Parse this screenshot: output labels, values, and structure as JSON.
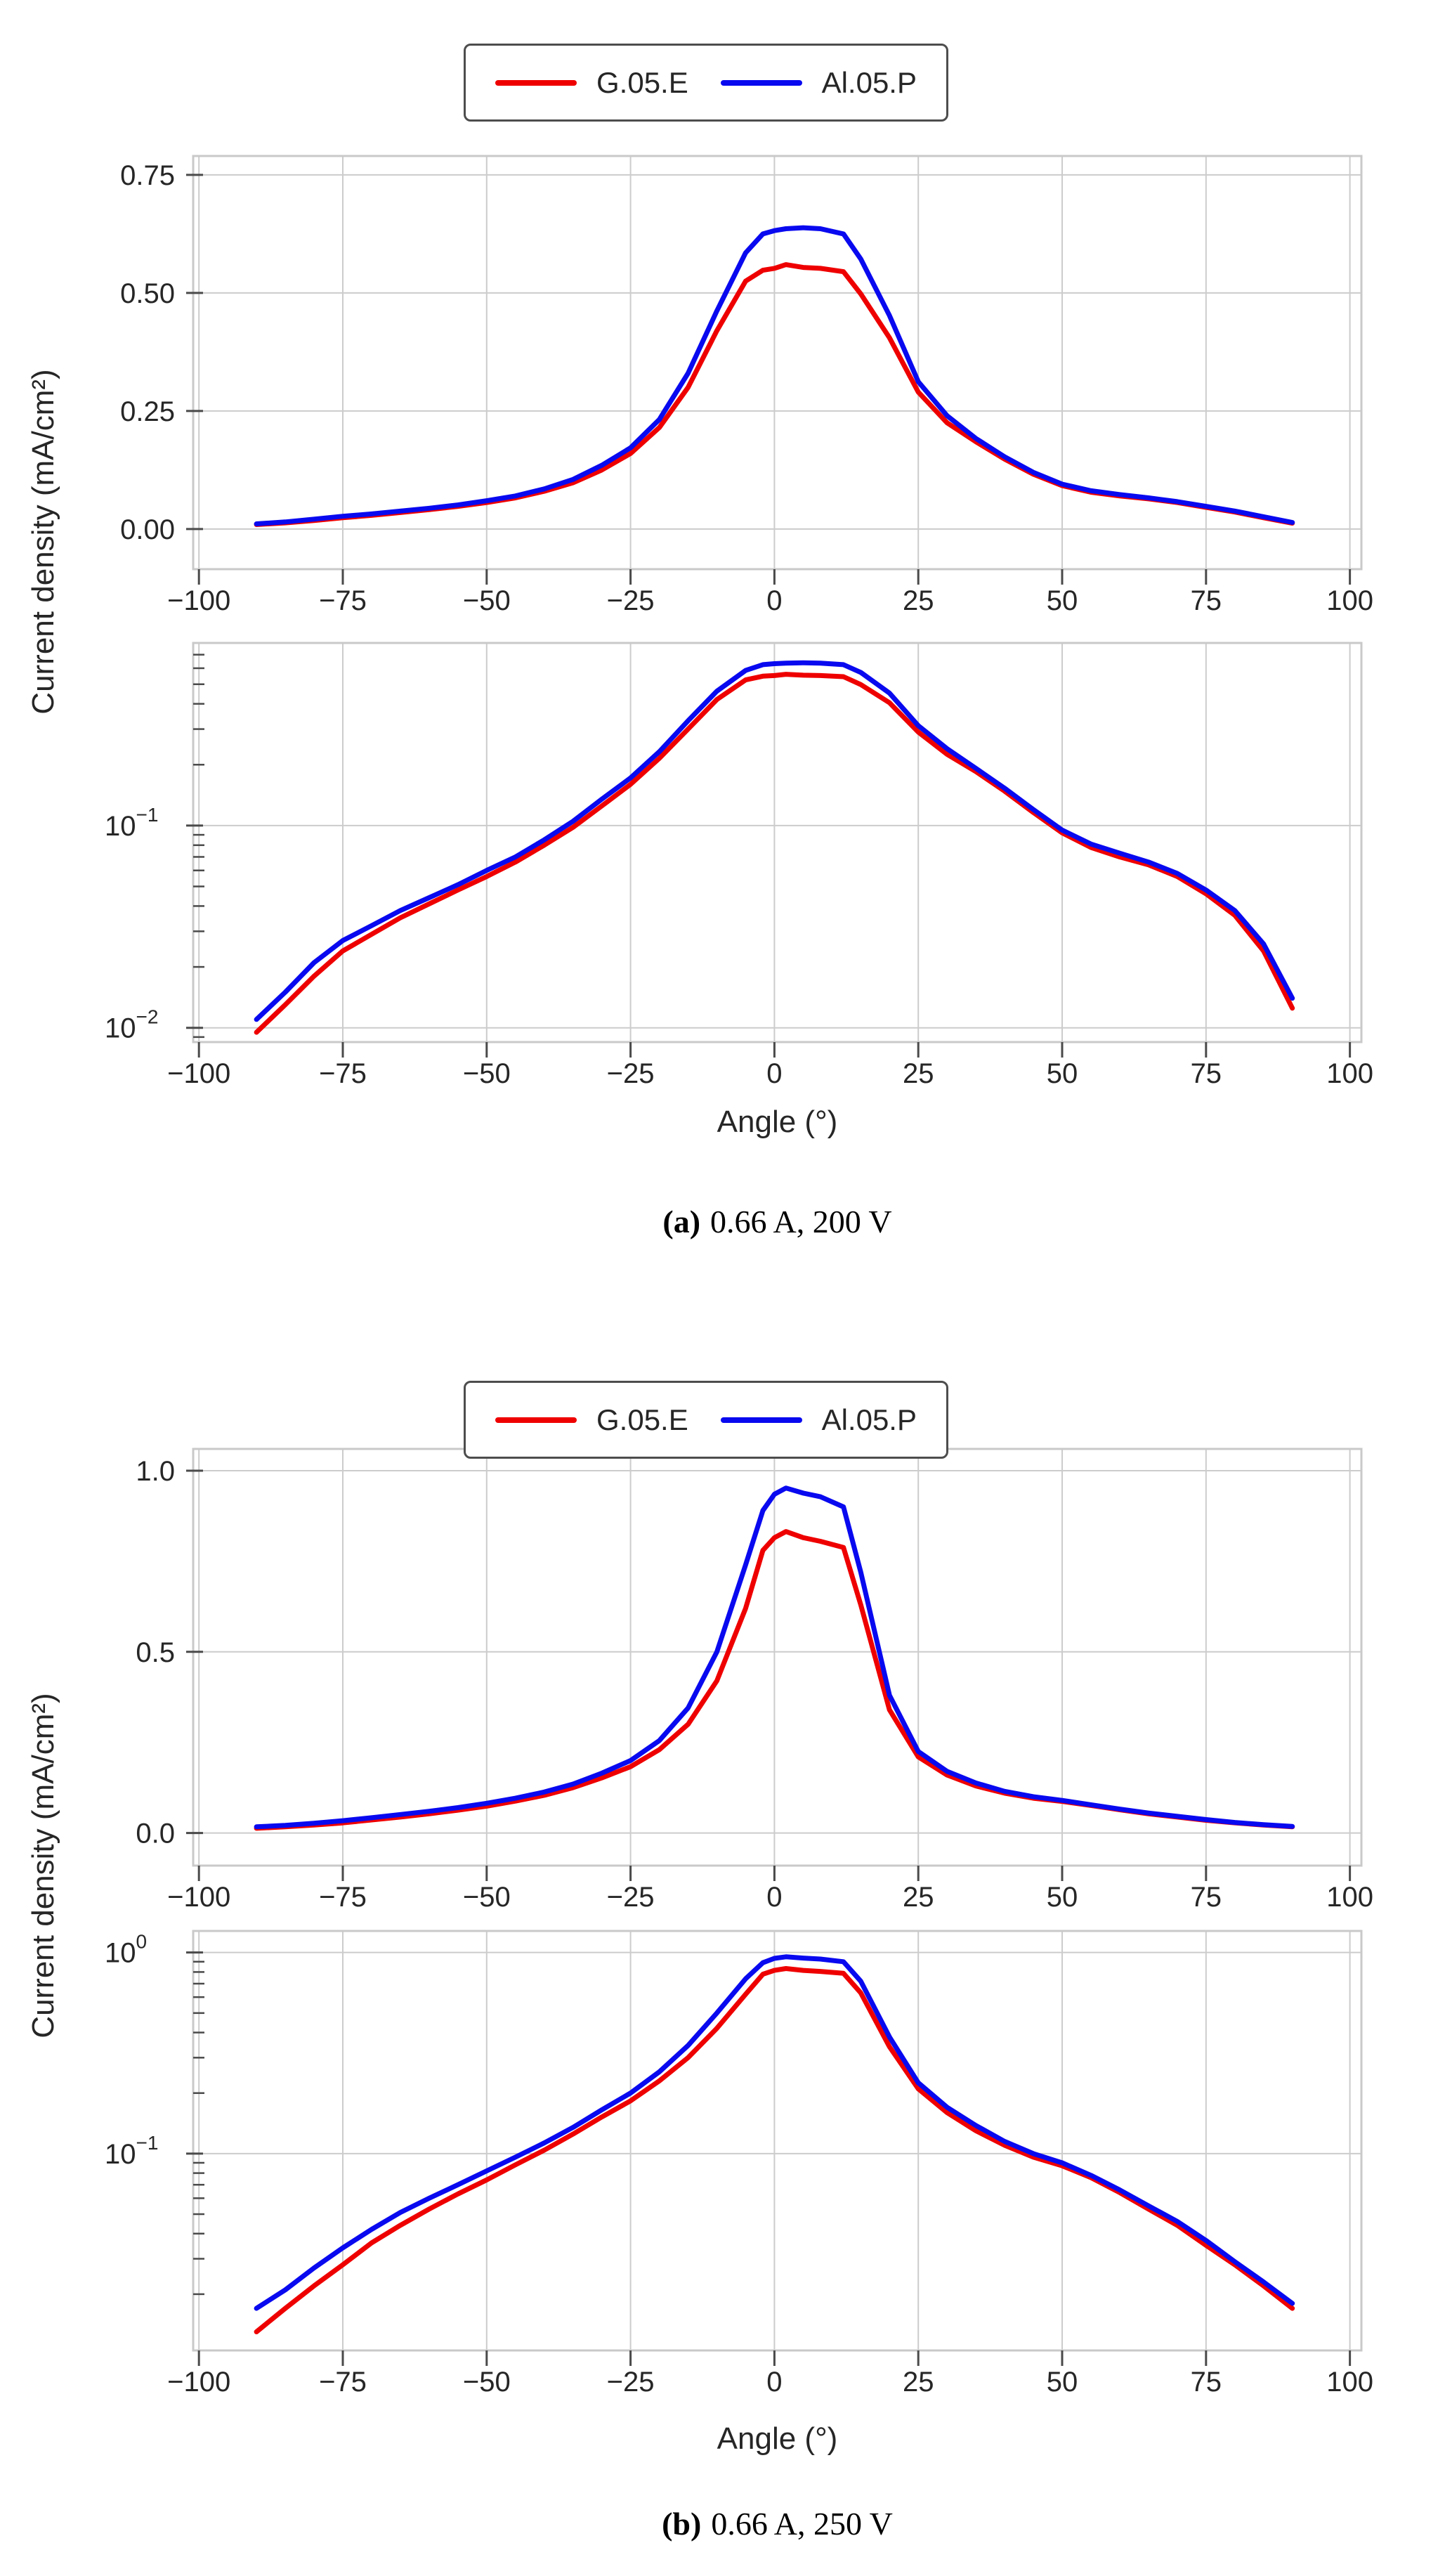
{
  "figure": {
    "background": "#ffffff",
    "grid_color": "#cccccc",
    "frame_color": "#c9c9c9",
    "tick_color": "#4a4a4a",
    "text_color": "#262626"
  },
  "legend": {
    "items": [
      {
        "label": "G.05.E",
        "color": "#ef0000"
      },
      {
        "label": "Al.05.P",
        "color": "#0909f0"
      }
    ]
  },
  "chart_data": [
    {
      "type": "line",
      "panel": "a",
      "caption_prefix": "(a)",
      "caption": "0.66 A, 200 V",
      "xlabel": "Angle (°)",
      "ylabel": "Current density (mA/cm²)",
      "legend_position": "top-center",
      "grid": true,
      "x": [
        -90,
        -85,
        -80,
        -75,
        -70,
        -65,
        -60,
        -55,
        -50,
        -45,
        -40,
        -35,
        -30,
        -25,
        -20,
        -15,
        -10,
        -5,
        -2,
        0,
        2,
        5,
        8,
        12,
        15,
        20,
        25,
        30,
        35,
        40,
        45,
        50,
        55,
        60,
        65,
        70,
        75,
        80,
        85,
        90
      ],
      "series": [
        {
          "name": "G.05.E",
          "color": "#ef0000",
          "values": [
            0.0095,
            0.013,
            0.018,
            0.024,
            0.029,
            0.035,
            0.041,
            0.048,
            0.056,
            0.066,
            0.08,
            0.098,
            0.125,
            0.16,
            0.215,
            0.3,
            0.42,
            0.525,
            0.548,
            0.552,
            0.56,
            0.554,
            0.552,
            0.545,
            0.498,
            0.405,
            0.29,
            0.225,
            0.185,
            0.148,
            0.116,
            0.092,
            0.078,
            0.07,
            0.064,
            0.056,
            0.046,
            0.036,
            0.024,
            0.0125
          ]
        },
        {
          "name": "Al.05.P",
          "color": "#0909f0",
          "values": [
            0.011,
            0.015,
            0.021,
            0.027,
            0.032,
            0.038,
            0.044,
            0.051,
            0.06,
            0.07,
            0.085,
            0.105,
            0.135,
            0.172,
            0.232,
            0.33,
            0.462,
            0.585,
            0.625,
            0.632,
            0.636,
            0.638,
            0.636,
            0.625,
            0.572,
            0.452,
            0.312,
            0.24,
            0.192,
            0.153,
            0.12,
            0.095,
            0.081,
            0.073,
            0.066,
            0.058,
            0.048,
            0.038,
            0.026,
            0.014
          ]
        }
      ],
      "xticks": {
        "values": [
          -100,
          -75,
          -50,
          -25,
          0,
          25,
          50,
          75,
          100
        ],
        "labels": [
          "−100",
          "−75",
          "−50",
          "−25",
          "0",
          "25",
          "50",
          "75",
          "100"
        ]
      },
      "xlim": [
        -101,
        102
      ],
      "subplots": [
        {
          "yscale": "linear",
          "ylim": [
            -0.085,
            0.79
          ],
          "yticks": {
            "values": [
              0,
              0.25,
              0.5,
              0.75
            ],
            "labels": [
              "0.00",
              "0.25",
              "0.50",
              "0.75"
            ]
          }
        },
        {
          "yscale": "log",
          "ylim": [
            0.0085,
            0.8
          ],
          "yticks": {
            "values": [
              0.1,
              0.01
            ],
            "base": "10",
            "exps": [
              "−1",
              "−2"
            ]
          }
        }
      ]
    },
    {
      "type": "line",
      "panel": "b",
      "caption_prefix": "(b)",
      "caption": "0.66 A, 250 V",
      "xlabel": "Angle (°)",
      "ylabel": "Current density (mA/cm²)",
      "legend_position": "top-center",
      "grid": true,
      "x": [
        -90,
        -85,
        -80,
        -75,
        -70,
        -65,
        -60,
        -55,
        -50,
        -45,
        -40,
        -35,
        -30,
        -25,
        -20,
        -15,
        -10,
        -5,
        -2,
        0,
        2,
        5,
        8,
        12,
        15,
        20,
        25,
        30,
        35,
        40,
        45,
        50,
        55,
        60,
        65,
        70,
        75,
        80,
        85,
        90
      ],
      "series": [
        {
          "name": "G.05.E",
          "color": "#ef0000",
          "values": [
            0.013,
            0.017,
            0.022,
            0.028,
            0.036,
            0.044,
            0.053,
            0.063,
            0.074,
            0.088,
            0.104,
            0.125,
            0.152,
            0.183,
            0.23,
            0.3,
            0.42,
            0.62,
            0.78,
            0.815,
            0.832,
            0.815,
            0.805,
            0.788,
            0.63,
            0.34,
            0.21,
            0.16,
            0.13,
            0.11,
            0.096,
            0.087,
            0.076,
            0.064,
            0.053,
            0.044,
            0.035,
            0.028,
            0.022,
            0.017
          ]
        },
        {
          "name": "Al.05.P",
          "color": "#0909f0",
          "values": [
            0.017,
            0.021,
            0.027,
            0.034,
            0.042,
            0.051,
            0.06,
            0.07,
            0.082,
            0.096,
            0.113,
            0.135,
            0.165,
            0.2,
            0.255,
            0.345,
            0.5,
            0.74,
            0.89,
            0.935,
            0.952,
            0.938,
            0.928,
            0.9,
            0.72,
            0.38,
            0.225,
            0.17,
            0.138,
            0.115,
            0.1,
            0.09,
            0.078,
            0.066,
            0.055,
            0.046,
            0.037,
            0.029,
            0.023,
            0.018
          ]
        }
      ],
      "xticks": {
        "values": [
          -100,
          -75,
          -50,
          -25,
          0,
          25,
          50,
          75,
          100
        ],
        "labels": [
          "−100",
          "−75",
          "−50",
          "−25",
          "0",
          "25",
          "50",
          "75",
          "100"
        ]
      },
      "xlim": [
        -101,
        102
      ],
      "subplots": [
        {
          "yscale": "linear",
          "ylim": [
            -0.09,
            1.06
          ],
          "yticks": {
            "values": [
              0,
              0.5,
              1.0
            ],
            "labels": [
              "0.0",
              "0.5",
              "1.0"
            ]
          }
        },
        {
          "yscale": "log",
          "ylim": [
            0.0105,
            1.28
          ],
          "yticks": {
            "values": [
              1,
              0.1
            ],
            "base": "10",
            "exps": [
              "0",
              "−1"
            ]
          }
        }
      ]
    }
  ]
}
